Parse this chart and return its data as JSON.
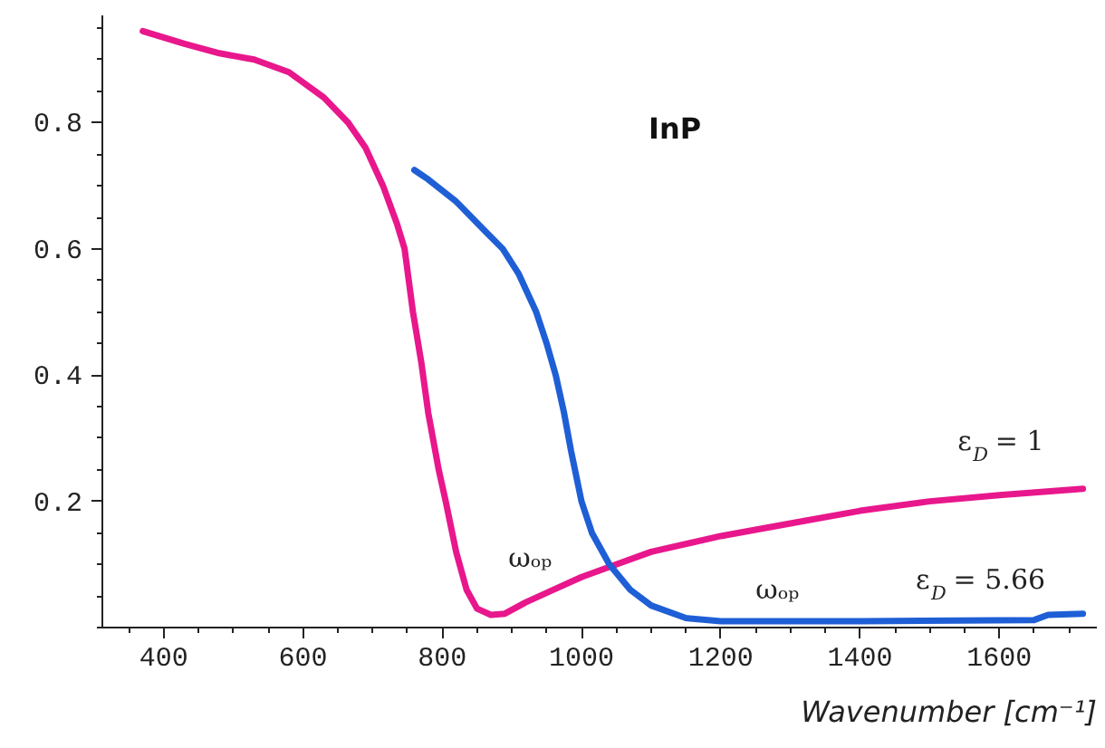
{
  "chart_data": {
    "type": "line",
    "title": "InP",
    "xlabel": "Wavenumber [cm⁻¹]",
    "xlim": [
      312,
      1740
    ],
    "ylim": [
      0,
      0.97
    ],
    "xticks": [
      400,
      600,
      800,
      1000,
      1200,
      1400,
      1600
    ],
    "yticks": [
      0.2,
      0.4,
      0.6,
      0.8
    ],
    "grid": false,
    "marker": "none",
    "line_style": "solid",
    "series": [
      {
        "color": "#e8178c",
        "x": [
          370,
          430,
          480,
          530,
          580,
          630,
          665,
          690,
          715,
          735,
          746,
          758,
          770,
          780,
          795,
          805,
          820,
          835,
          850,
          870,
          890,
          920,
          960,
          1000,
          1050,
          1100,
          1200,
          1300,
          1400,
          1500,
          1600,
          1720
        ],
        "values": [
          0.945,
          0.925,
          0.91,
          0.9,
          0.88,
          0.84,
          0.8,
          0.76,
          0.7,
          0.64,
          0.6,
          0.5,
          0.42,
          0.34,
          0.25,
          0.2,
          0.12,
          0.06,
          0.03,
          0.02,
          0.022,
          0.04,
          0.06,
          0.08,
          0.1,
          0.12,
          0.145,
          0.165,
          0.185,
          0.2,
          0.21,
          0.22
        ]
      },
      {
        "color": "#1f5fd6",
        "x": [
          760,
          780,
          820,
          860,
          887,
          910,
          935,
          950,
          963,
          975,
          985,
          1000,
          1015,
          1040,
          1070,
          1100,
          1150,
          1200,
          1400,
          1650,
          1670,
          1720
        ],
        "values": [
          0.725,
          0.71,
          0.675,
          0.63,
          0.6,
          0.56,
          0.5,
          0.45,
          0.4,
          0.34,
          0.28,
          0.2,
          0.15,
          0.1,
          0.06,
          0.035,
          0.015,
          0.01,
          0.01,
          0.012,
          0.02,
          0.022
        ]
      }
    ],
    "annotations": [
      "ωₒₚ",
      "ωₒₚ",
      "ε$_{D}$ = 1",
      "ε$_{D}$ = 5.66"
    ]
  }
}
